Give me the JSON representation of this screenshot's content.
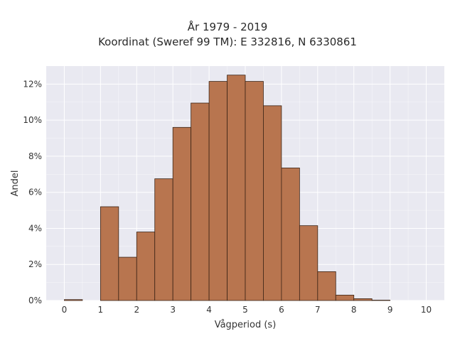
{
  "chart_data": {
    "type": "bar",
    "title_line1": "År 1979 - 2019",
    "title_line2": "Koordinat (Sweref 99 TM): E 332816, N 6330861",
    "xlabel": "Vågperiod (s)",
    "ylabel": "Andel",
    "xlim": [
      -0.5,
      10.5
    ],
    "ylim": [
      0,
      13
    ],
    "x_ticks": [
      0,
      1,
      2,
      3,
      4,
      5,
      6,
      7,
      8,
      9,
      10
    ],
    "y_ticks": [
      0,
      2,
      4,
      6,
      8,
      10,
      12
    ],
    "y_tick_labels": [
      "0%",
      "2%",
      "4%",
      "6%",
      "8%",
      "10%",
      "12%"
    ],
    "bin_width": 0.5,
    "bins": [
      {
        "start": 0.0,
        "value": 0.05
      },
      {
        "start": 1.0,
        "value": 5.2
      },
      {
        "start": 1.5,
        "value": 2.4
      },
      {
        "start": 2.0,
        "value": 3.8
      },
      {
        "start": 2.5,
        "value": 6.75
      },
      {
        "start": 3.0,
        "value": 9.6
      },
      {
        "start": 3.5,
        "value": 10.95
      },
      {
        "start": 4.0,
        "value": 12.15
      },
      {
        "start": 4.5,
        "value": 12.5
      },
      {
        "start": 5.0,
        "value": 12.15
      },
      {
        "start": 5.5,
        "value": 10.8
      },
      {
        "start": 6.0,
        "value": 7.35
      },
      {
        "start": 6.5,
        "value": 4.15
      },
      {
        "start": 7.0,
        "value": 1.6
      },
      {
        "start": 7.5,
        "value": 0.3
      },
      {
        "start": 8.0,
        "value": 0.1
      },
      {
        "start": 8.5,
        "value": 0.02
      }
    ],
    "grid": true,
    "colors": {
      "bar_fill": "#b8754f",
      "bar_edge": "#3b2416",
      "plot_background": "#e9e9f1",
      "grid": "#ffffff"
    }
  }
}
